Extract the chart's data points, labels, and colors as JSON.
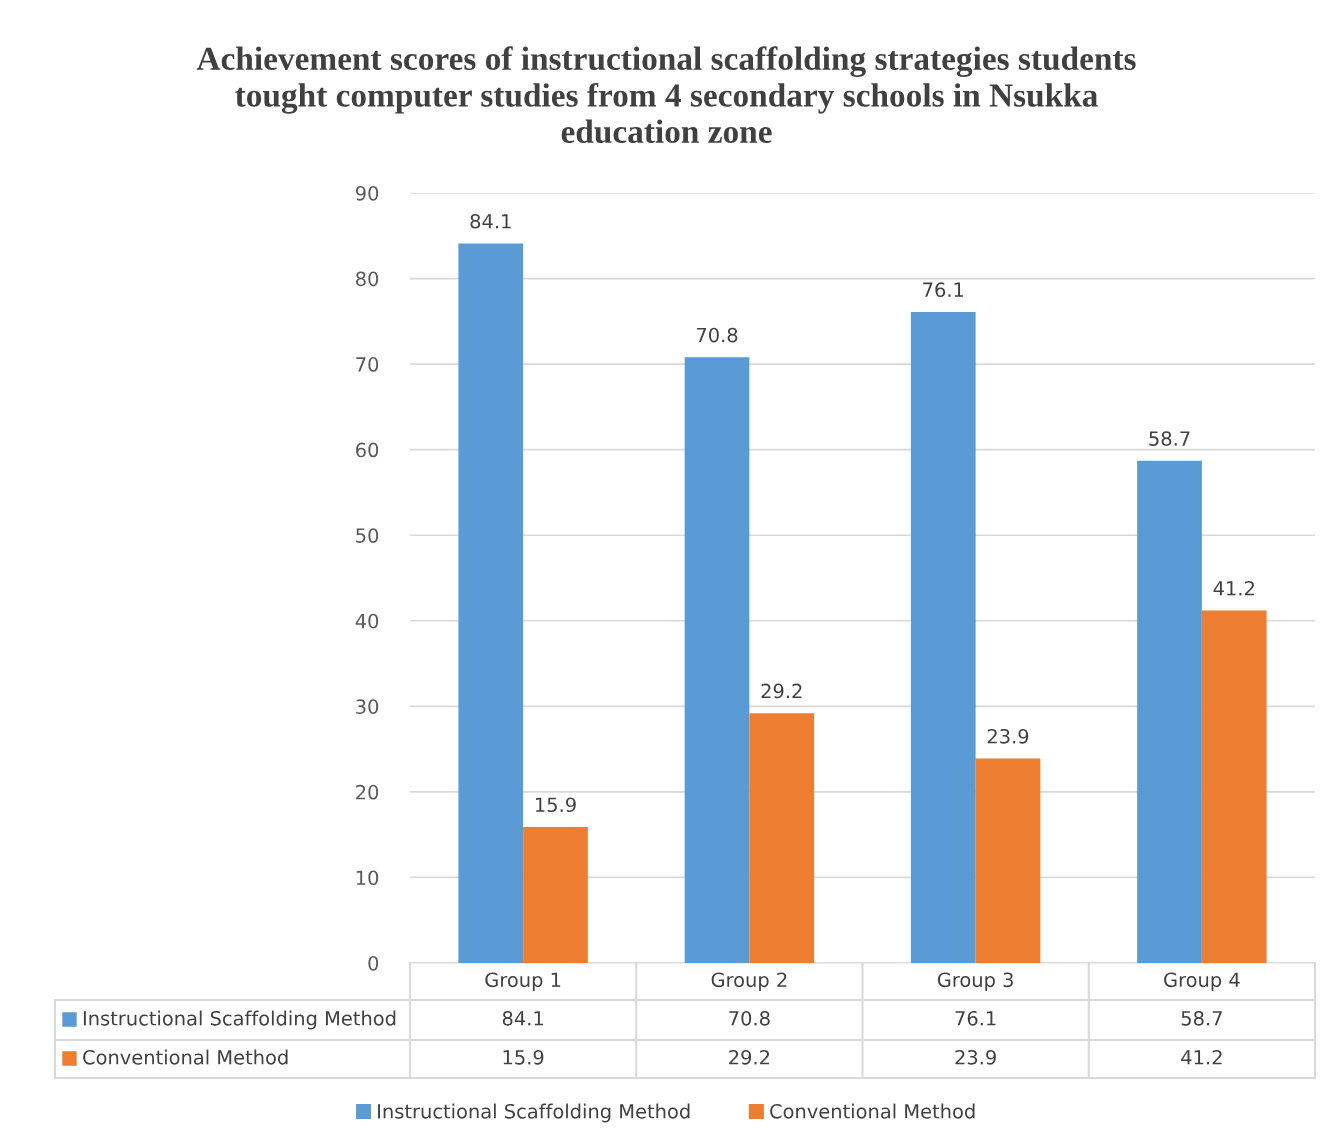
{
  "chart_data": {
    "type": "bar",
    "title": "Achievement scores of instructional scaffolding strategies students tought computer studies from 4 secondary schools in Nsukka education zone",
    "categories": [
      "Group 1",
      "Group 2",
      "Group 3",
      "Group 4"
    ],
    "series": [
      {
        "name": "Instructional Scaffolding Method",
        "color": "#5b9bd5",
        "values": [
          84.1,
          70.8,
          76.1,
          58.7
        ],
        "value_labels": [
          "84.1",
          "70.8",
          "76.1",
          "58.7"
        ]
      },
      {
        "name": "Conventional Method",
        "color": "#ed7d31",
        "values": [
          15.9,
          29.2,
          23.9,
          41.2
        ],
        "value_labels": [
          "15.9",
          "29.2",
          "23.9",
          "41.2"
        ]
      }
    ],
    "annotations": [
      "84.1",
      "70.8",
      "76.1",
      "58.7",
      "15.9",
      "29.2",
      "23.9",
      "41.2"
    ],
    "ylim": [
      0,
      90
    ],
    "yticks": [
      0,
      10,
      20,
      30,
      40,
      50,
      60,
      70,
      80,
      90
    ],
    "grid": "y",
    "legend": "bottom"
  }
}
